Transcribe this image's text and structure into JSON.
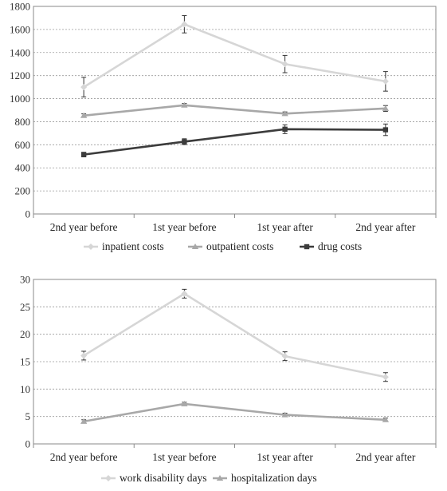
{
  "chart_data": [
    {
      "type": "line",
      "title": "",
      "xlabel": "",
      "ylabel": "",
      "categories": [
        "2nd year before",
        "1st year before",
        "1st year after",
        "2nd year after"
      ],
      "ylim": [
        0,
        1800
      ],
      "yticks": [
        0,
        200,
        400,
        600,
        800,
        1000,
        1200,
        1400,
        1600,
        1800
      ],
      "grid": true,
      "legend_position": "bottom",
      "series": [
        {
          "name": "inpatient costs",
          "values": [
            1100,
            1645,
            1300,
            1150
          ],
          "error": [
            85,
            75,
            75,
            85
          ],
          "color": "#d6d6d6",
          "marker": "diamond"
        },
        {
          "name": "outpatient costs",
          "values": [
            853,
            943,
            870,
            915
          ],
          "error": [
            15,
            15,
            15,
            25
          ],
          "color": "#a8a8a8",
          "marker": "triangle"
        },
        {
          "name": "drug costs",
          "values": [
            515,
            627,
            735,
            730
          ],
          "error": [
            20,
            25,
            38,
            50
          ],
          "color": "#3c3c3c",
          "marker": "square"
        }
      ]
    },
    {
      "type": "line",
      "title": "",
      "xlabel": "",
      "ylabel": "",
      "categories": [
        "2nd year before",
        "1st year before",
        "1st year after",
        "2nd year after"
      ],
      "ylim": [
        0,
        30
      ],
      "yticks": [
        0,
        5,
        10,
        15,
        20,
        25,
        30
      ],
      "grid": true,
      "legend_position": "bottom",
      "series": [
        {
          "name": "work disability days",
          "values": [
            16.1,
            27.4,
            16.0,
            12.2
          ],
          "error": [
            0.8,
            0.8,
            0.8,
            0.8
          ],
          "color": "#d6d6d6",
          "marker": "diamond"
        },
        {
          "name": "hospitalization days",
          "values": [
            4.1,
            7.3,
            5.3,
            4.4
          ],
          "error": [
            0.3,
            0.3,
            0.3,
            0.3
          ],
          "color": "#a8a8a8",
          "marker": "triangle"
        }
      ]
    }
  ]
}
